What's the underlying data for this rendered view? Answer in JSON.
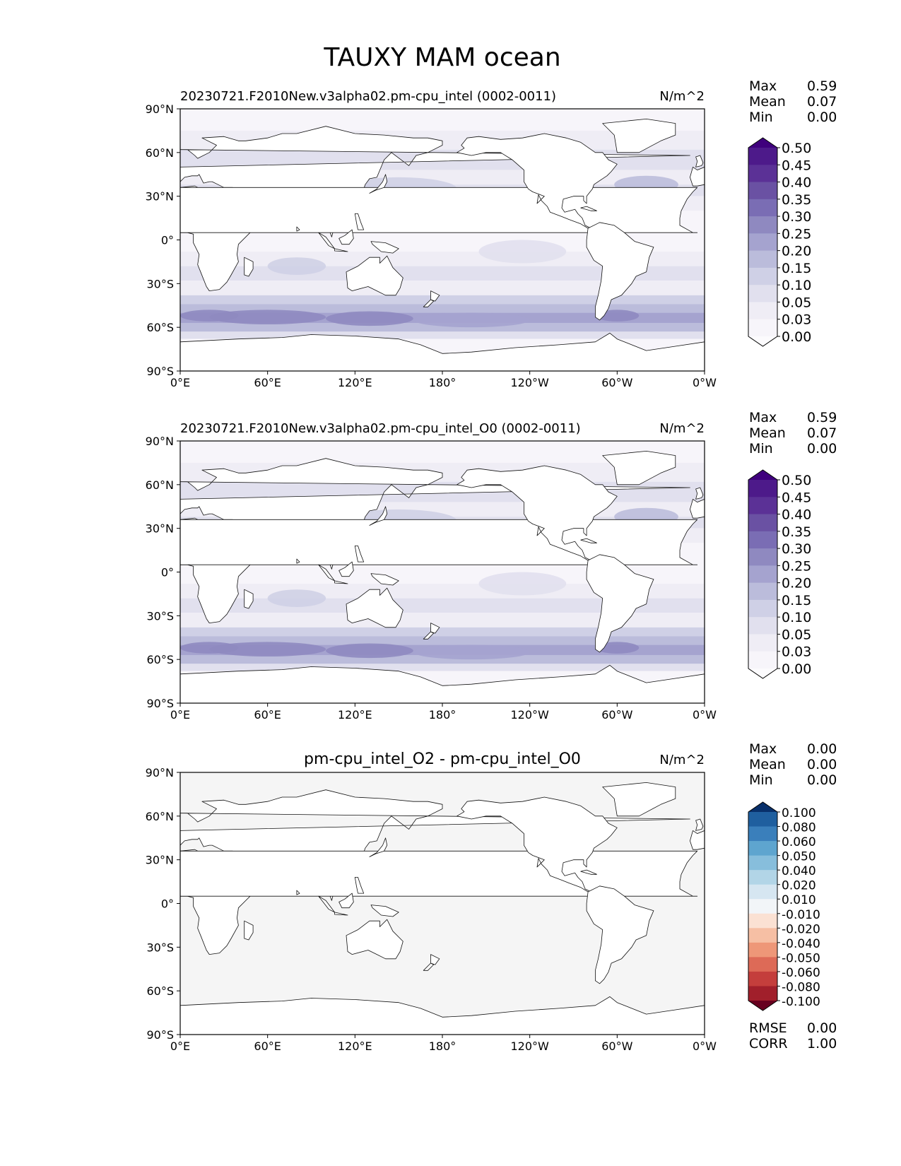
{
  "figure_title": "TAUXY MAM ocean",
  "chart_data": [
    {
      "type": "heatmap",
      "title": "20230721.F2010New.v3alpha02.pm-cpu_intel (0002-0011)",
      "units": "N/m^2",
      "xticks": [
        "0°E",
        "60°E",
        "120°E",
        "180°",
        "120°W",
        "60°W",
        "0°W"
      ],
      "yticks": [
        "90°N",
        "60°N",
        "30°N",
        "0°",
        "30°S",
        "60°S",
        "90°S"
      ],
      "stats": [
        {
          "label": "Max",
          "value": "0.59"
        },
        {
          "label": "Mean",
          "value": "0.07"
        },
        {
          "label": "Min",
          "value": "0.00"
        }
      ],
      "colorbar_levels": [
        "0.50",
        "0.45",
        "0.40",
        "0.35",
        "0.30",
        "0.25",
        "0.20",
        "0.15",
        "0.10",
        "0.05",
        "0.03",
        "0.00"
      ],
      "colorbar_colors": [
        "#3f007d",
        "#4d1a8a",
        "#5b3196",
        "#6a51a3",
        "#7a6db4",
        "#8f89c0",
        "#a5a3cf",
        "#bbbcdb",
        "#cfd0e6",
        "#e1e0ee",
        "#efedf5",
        "#f7f5fa",
        "#fcfbfd"
      ],
      "ocean_base": "#e7e7f2",
      "field_kind": "tauxy"
    },
    {
      "type": "heatmap",
      "title": "20230721.F2010New.v3alpha02.pm-cpu_intel_O0 (0002-0011)",
      "units": "N/m^2",
      "xticks": [
        "0°E",
        "60°E",
        "120°E",
        "180°",
        "120°W",
        "60°W",
        "0°W"
      ],
      "yticks": [
        "90°N",
        "60°N",
        "30°N",
        "0°",
        "30°S",
        "60°S",
        "90°S"
      ],
      "stats": [
        {
          "label": "Max",
          "value": "0.59"
        },
        {
          "label": "Mean",
          "value": "0.07"
        },
        {
          "label": "Min",
          "value": "0.00"
        }
      ],
      "colorbar_levels": [
        "0.50",
        "0.45",
        "0.40",
        "0.35",
        "0.30",
        "0.25",
        "0.20",
        "0.15",
        "0.10",
        "0.05",
        "0.03",
        "0.00"
      ],
      "colorbar_colors": [
        "#3f007d",
        "#4d1a8a",
        "#5b3196",
        "#6a51a3",
        "#7a6db4",
        "#8f89c0",
        "#a5a3cf",
        "#bbbcdb",
        "#cfd0e6",
        "#e1e0ee",
        "#efedf5",
        "#f7f5fa",
        "#fcfbfd"
      ],
      "ocean_base": "#e7e7f2",
      "field_kind": "tauxy"
    },
    {
      "type": "heatmap",
      "title": "pm-cpu_intel_O2 - pm-cpu_intel_O0",
      "units": "N/m^2",
      "xticks": [
        "0°E",
        "60°E",
        "120°E",
        "180°",
        "120°W",
        "60°W",
        "0°W"
      ],
      "yticks": [
        "90°N",
        "60°N",
        "30°N",
        "0°",
        "30°S",
        "60°S",
        "90°S"
      ],
      "stats": [
        {
          "label": "Max",
          "value": "0.00"
        },
        {
          "label": "Mean",
          "value": "0.00"
        },
        {
          "label": "Min",
          "value": "0.00"
        }
      ],
      "colorbar_levels": [
        "0.100",
        "0.080",
        "0.060",
        "0.050",
        "0.040",
        "0.020",
        "0.010",
        "-0.010",
        "-0.020",
        "-0.040",
        "-0.050",
        "-0.060",
        "-0.080",
        "-0.100"
      ],
      "colorbar_colors": [
        "#08306b",
        "#1f5f9f",
        "#3a7fbb",
        "#5ea5cf",
        "#87bedc",
        "#b2d5e7",
        "#d6e6f1",
        "#f2f5f8",
        "#fbe1d3",
        "#f6bfa4",
        "#ee9778",
        "#dd6a57",
        "#c43e3c",
        "#a11f2b",
        "#67001f"
      ],
      "ocean_base": "#f5f5f5",
      "field_kind": "diff",
      "extra_stats": [
        {
          "label": "RMSE",
          "value": "0.00"
        },
        {
          "label": "CORR",
          "value": "1.00"
        }
      ]
    }
  ]
}
